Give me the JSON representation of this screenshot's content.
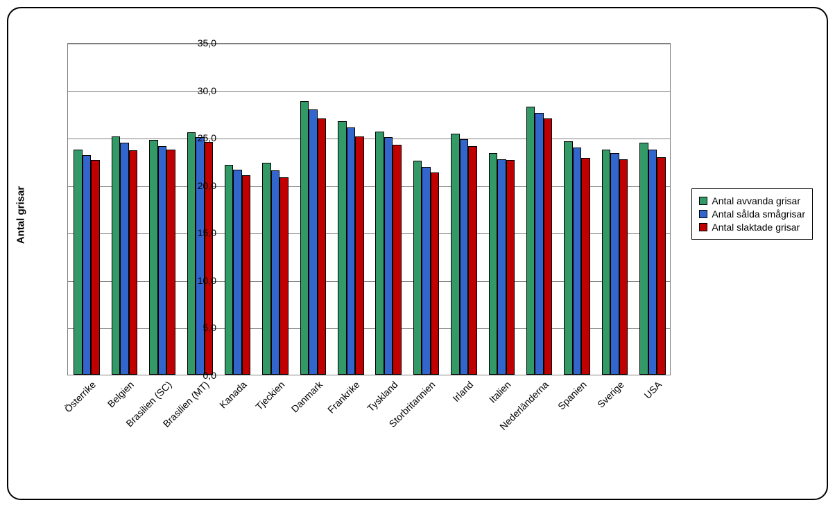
{
  "chart": {
    "type": "bar",
    "y_axis_label": "Antal grisar",
    "ylim": [
      0,
      35
    ],
    "ytick_step": 5,
    "y_ticks": [
      "0,0",
      "5,0",
      "10,0",
      "15,0",
      "20,0",
      "25,0",
      "30,0",
      "35,0"
    ],
    "background_color": "#ffffff",
    "grid_color": "#808080",
    "border_color": "#000000",
    "border_radius": 20,
    "label_fontsize": 14,
    "axis_label_fontsize": 15,
    "categories": [
      "Österrike",
      "Belgien",
      "Brasilien (SC)",
      "Brasilien (MT)",
      "Kanada",
      "Tjeckien",
      "Danmark",
      "Frankrike",
      "Tyskland",
      "Storbritannien",
      "Irland",
      "Italien",
      "Nederländerna",
      "Spanien",
      "Sverige",
      "USA"
    ],
    "series": [
      {
        "name": "Antal avvanda grisar",
        "color": "#339966",
        "values": [
          23.7,
          25.1,
          24.7,
          25.5,
          22.1,
          22.3,
          28.8,
          26.7,
          25.6,
          22.5,
          25.4,
          23.3,
          28.2,
          24.6,
          23.7,
          24.4
        ]
      },
      {
        "name": "Antal sålda smågrisar",
        "color": "#3366cc",
        "values": [
          23.1,
          24.4,
          24.1,
          25.0,
          21.6,
          21.5,
          27.9,
          26.0,
          25.0,
          21.9,
          24.8,
          22.7,
          27.6,
          23.9,
          23.3,
          23.7
        ]
      },
      {
        "name": "Antal slaktade grisar",
        "color": "#c00000",
        "values": [
          22.6,
          23.6,
          23.7,
          24.5,
          21.0,
          20.8,
          27.0,
          25.1,
          24.2,
          21.3,
          24.1,
          22.6,
          27.0,
          22.8,
          22.7,
          22.9
        ]
      }
    ],
    "bar_width_ratio": 0.23,
    "group_width": 54.375
  },
  "legend": {
    "items": [
      {
        "label": "Antal avvanda grisar",
        "color": "#339966"
      },
      {
        "label": "Antal sålda smågrisar",
        "color": "#3366cc"
      },
      {
        "label": "Antal slaktade grisar",
        "color": "#c00000"
      }
    ]
  }
}
